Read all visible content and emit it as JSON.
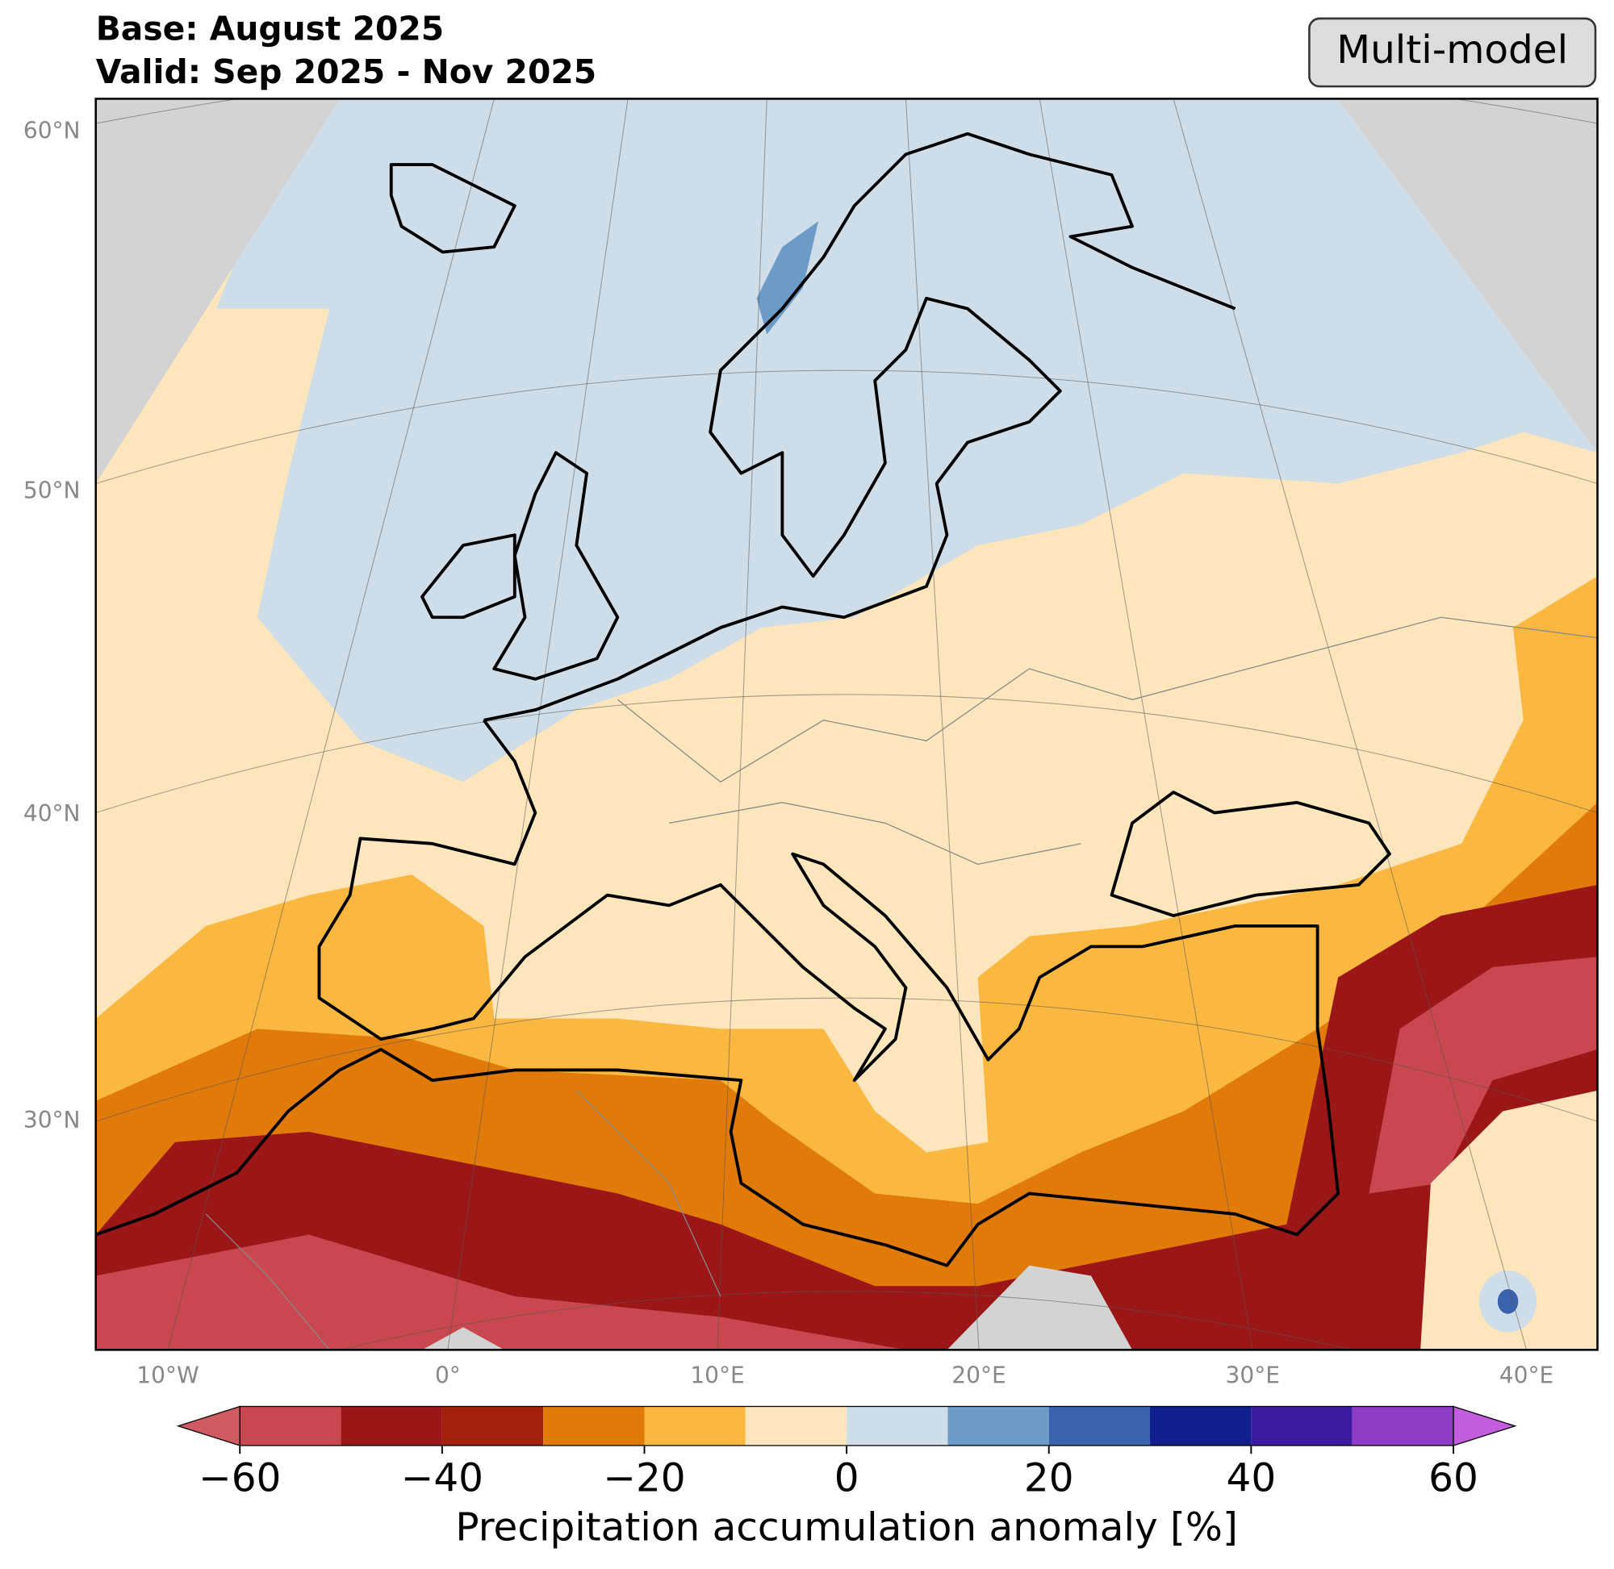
{
  "header": {
    "base": "Base: August 2025",
    "valid": "Valid: Sep 2025 - Nov 2025",
    "model_label": "Multi-model"
  },
  "map": {
    "lat_labels": [
      "60°N",
      "50°N",
      "40°N",
      "30°N"
    ],
    "lon_labels": [
      "10°W",
      "0°",
      "10°E",
      "20°E",
      "30°E",
      "40°E"
    ]
  },
  "colorbar": {
    "bounds": [
      -60,
      -50,
      -40,
      -30,
      -20,
      -10,
      0,
      10,
      20,
      30,
      40,
      50,
      60
    ],
    "colors": [
      "#c9474f",
      "#9b1717",
      "#a3200d",
      "#e07b0a",
      "#fbb840",
      "#fde6bc",
      "#cfdde9",
      "#6d9bc8",
      "#3a62ad",
      "#101f8c",
      "#3b1b9f",
      "#8e3cc6"
    ],
    "under_color": "#d05a61",
    "over_color": "#c45ce0",
    "ticks": [
      {
        "value": -60,
        "label": "−60"
      },
      {
        "value": -40,
        "label": "−40"
      },
      {
        "value": -20,
        "label": "−20"
      },
      0,
      20,
      40,
      60
    ],
    "label": "Precipitation accumulation anomaly [%]"
  }
}
